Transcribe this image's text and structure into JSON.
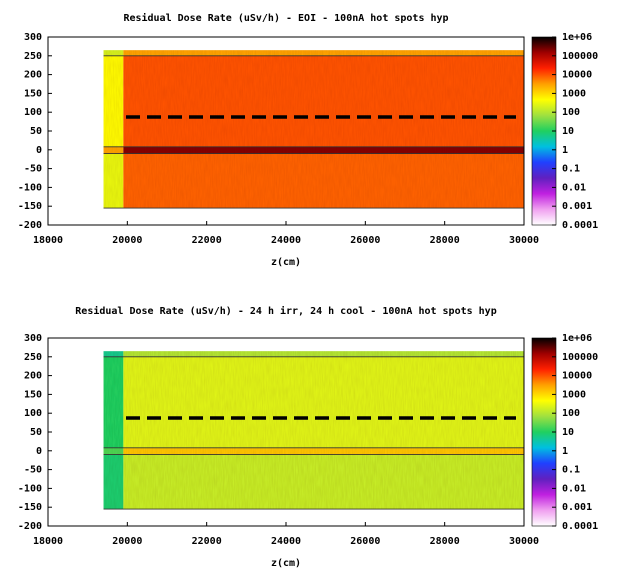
{
  "chart_data": [
    {
      "type": "heatmap",
      "title": "Residual Dose Rate (uSv/h) - EOI - 100nA hot spots hyp",
      "xlabel": "z(cm)",
      "xlim": [
        18000,
        30000
      ],
      "xticks": [
        18000,
        20000,
        22000,
        24000,
        26000,
        28000,
        30000
      ],
      "ylim": [
        -200,
        300
      ],
      "yticks": [
        -200,
        -150,
        -100,
        -50,
        0,
        50,
        100,
        150,
        200,
        250,
        300
      ],
      "x_edges": [
        19400,
        19900,
        30000
      ],
      "y_edges": [
        -155,
        -10,
        8,
        250,
        265
      ],
      "z": [
        [
          300,
          8000
        ],
        [
          3000,
          200000
        ],
        [
          500,
          10000
        ],
        [
          200,
          3000
        ]
      ],
      "log_z": true,
      "zlim": [
        0.0001,
        1000000
      ],
      "zticks": [
        {
          "value": 1000000,
          "label": "1e+06"
        },
        100000,
        10000,
        1000,
        100,
        10,
        1,
        0.1,
        0.01,
        0.001,
        0.0001
      ],
      "colors": [
        "#ffffff",
        "#f0a0f0",
        "#c020e0",
        "#6020c0",
        "#2040ff",
        "#00c0e0",
        "#20d060",
        "#a0e040",
        "#ffff00",
        "#ffa000",
        "#ff2000",
        "#a00000",
        "#000000"
      ]
    },
    {
      "type": "heatmap",
      "title": "Residual Dose Rate (uSv/h) - 24 h irr, 24 h cool - 100nA hot spots hyp",
      "xlabel": "z(cm)",
      "xlim": [
        18000,
        30000
      ],
      "xticks": [
        18000,
        20000,
        22000,
        24000,
        26000,
        28000,
        30000
      ],
      "ylim": [
        -200,
        300
      ],
      "yticks": [
        -200,
        -150,
        -100,
        -50,
        0,
        50,
        100,
        150,
        200,
        250,
        300
      ],
      "x_edges": [
        19400,
        19900,
        30000
      ],
      "y_edges": [
        -155,
        -10,
        8,
        250,
        265
      ],
      "z": [
        [
          8,
          150
        ],
        [
          20,
          1500
        ],
        [
          10,
          250
        ],
        [
          5,
          100
        ]
      ],
      "log_z": true,
      "zlim": [
        0.0001,
        1000000
      ],
      "zticks": [
        {
          "value": 1000000,
          "label": "1e+06"
        },
        100000,
        10000,
        1000,
        100,
        10,
        1,
        0.1,
        0.01,
        0.001,
        0.0001
      ],
      "colors": [
        "#ffffff",
        "#f0a0f0",
        "#c020e0",
        "#6020c0",
        "#2040ff",
        "#00c0e0",
        "#20d060",
        "#a0e040",
        "#ffff00",
        "#ffa000",
        "#ff2000",
        "#a00000",
        "#000000"
      ]
    }
  ]
}
